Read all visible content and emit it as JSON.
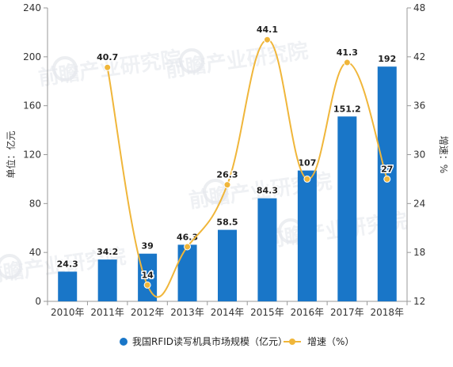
{
  "chart_data": {
    "type": "bar",
    "categories": [
      "2010年",
      "2011年",
      "2012年",
      "2013年",
      "2014年",
      "2015年",
      "2016年",
      "2017年",
      "2018年"
    ],
    "series": [
      {
        "name": "我国RFID读写机具市场规模（亿元）",
        "type": "bar",
        "axis": "left",
        "values": [
          24.3,
          34.2,
          39,
          46.3,
          58.5,
          84.3,
          107,
          151.2,
          192
        ],
        "labels": [
          "24.3",
          "34.2",
          "39",
          "46.3",
          "58.5",
          "84.3",
          "107",
          "151.2",
          "192"
        ]
      },
      {
        "name": "增速（%）",
        "type": "line",
        "axis": "right",
        "values": [
          null,
          40.7,
          14,
          18.7,
          26.3,
          44.1,
          27,
          41.3,
          27
        ],
        "labels": [
          "",
          "40.7",
          "14",
          "",
          "26.3",
          "44.1",
          "",
          "41.3",
          "27"
        ]
      }
    ],
    "ylabel": "单位：亿元",
    "y2label": "增速：%",
    "ylim": [
      0,
      240
    ],
    "y2lim": [
      12,
      48
    ],
    "yticks": [
      "0",
      "40",
      "80",
      "120",
      "160",
      "200",
      "240"
    ],
    "y2ticks": [
      "12",
      "18",
      "24",
      "30",
      "36",
      "42",
      "48"
    ],
    "legend_position": "bottom",
    "grid": false,
    "colors": {
      "bar": "#1976c8",
      "line": "#f0b63a",
      "axis": "#999999"
    },
    "watermark": "前瞻产业研究院"
  }
}
